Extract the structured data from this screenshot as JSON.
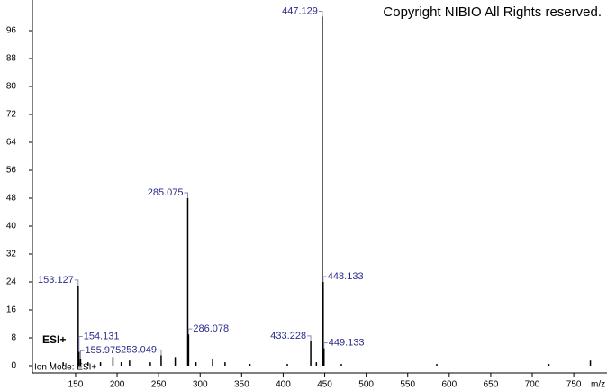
{
  "chart_data": {
    "type": "stick",
    "title": "Copyright NIBIO All Rights reserved.",
    "mode_label": "ESI+",
    "footer": "Ion Mode: ESI+",
    "x_label": "m/z",
    "xlim": [
      98,
      790
    ],
    "ylim": [
      0,
      104
    ],
    "xticks": [
      150,
      200,
      250,
      300,
      350,
      400,
      450,
      500,
      550,
      600,
      650,
      700,
      750
    ],
    "yticks": [
      0,
      8,
      16,
      24,
      32,
      40,
      48,
      56,
      64,
      72,
      80,
      88,
      96
    ],
    "color": "#000000",
    "peaks": {
      "x": [
        153.127,
        154.131,
        155.975,
        253.049,
        285.075,
        286.078,
        433.228,
        447.129,
        448.133,
        449.133
      ],
      "values": [
        23,
        4,
        2,
        3,
        48,
        9,
        7,
        100,
        24,
        5
      ]
    },
    "minor_peaks": {
      "x": [
        120,
        135,
        165,
        180,
        195,
        205,
        215,
        240,
        270,
        295,
        315,
        330,
        360,
        405,
        440,
        470,
        585,
        720,
        770
      ],
      "values": [
        1,
        1,
        1,
        1,
        2.5,
        1,
        1.5,
        1,
        2.5,
        1,
        2,
        1,
        0.5,
        0.5,
        1,
        0.5,
        0.5,
        0.5,
        1.5
      ]
    }
  }
}
